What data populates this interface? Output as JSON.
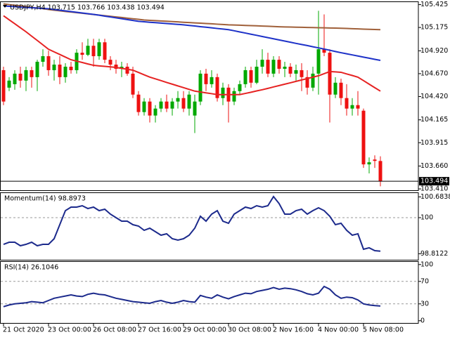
{
  "chart_data": [
    {
      "type": "candlestick",
      "title": "USDJPY,H4  103.715 103.766 103.438 103.494",
      "categories": [
        "21 Oct 2020",
        null,
        null,
        null,
        null,
        null,
        null,
        null,
        "23 Oct 00:00",
        null,
        null,
        null,
        null,
        null,
        null,
        null,
        "26 Oct 08:00",
        null,
        null,
        null,
        null,
        null,
        null,
        null,
        "27 Oct 16:00",
        null,
        null,
        null,
        null,
        null,
        null,
        null,
        "29 Oct 00:00",
        null,
        null,
        null,
        null,
        null,
        null,
        null,
        "30 Oct 08:00",
        null,
        null,
        null,
        null,
        null,
        null,
        null,
        "2 Nov 16:00",
        null,
        null,
        null,
        null,
        null,
        null,
        null,
        "4 Nov 00:00",
        null,
        null,
        null,
        null,
        null,
        null,
        null,
        "5 Nov 08:00",
        null,
        null,
        null
      ],
      "open": [
        104.708,
        104.517,
        104.555,
        104.67,
        104.594,
        104.708,
        104.632,
        104.8,
        104.861,
        104.708,
        104.769,
        104.632,
        104.746,
        104.708,
        104.899,
        104.876,
        104.975,
        104.861,
        105.013,
        104.822,
        104.769,
        104.723,
        104.746,
        104.67,
        104.441,
        104.25,
        104.365,
        104.212,
        104.288,
        104.365,
        104.288,
        104.365,
        104.403,
        104.288,
        104.212,
        104.365,
        104.67,
        104.555,
        104.632,
        104.403,
        104.517,
        104.365,
        104.479,
        104.555,
        104.708,
        104.571,
        104.746,
        104.822,
        104.67,
        104.822,
        104.723,
        104.746,
        104.67,
        104.708,
        104.632,
        104.517,
        104.67,
        104.937,
        104.899,
        104.441,
        104.571,
        104.403,
        104.288,
        104.326,
        104.265,
        103.678,
        103.731,
        103.715
      ],
      "high": [
        104.746,
        104.632,
        104.708,
        104.746,
        104.746,
        104.746,
        104.822,
        104.937,
        104.922,
        104.822,
        104.861,
        104.784,
        104.8,
        104.937,
        105.013,
        105.051,
        105.051,
        105.051,
        105.051,
        104.861,
        104.822,
        104.8,
        104.784,
        104.746,
        104.479,
        104.403,
        104.403,
        104.326,
        104.403,
        104.441,
        104.403,
        104.479,
        104.479,
        104.479,
        104.441,
        104.708,
        104.723,
        104.708,
        104.67,
        104.571,
        104.555,
        104.517,
        104.594,
        104.746,
        104.746,
        104.822,
        104.937,
        104.899,
        104.861,
        104.861,
        104.8,
        104.784,
        104.769,
        104.784,
        104.708,
        104.746,
        105.357,
        105.318,
        104.937,
        104.632,
        104.616,
        104.555,
        104.403,
        104.479,
        104.288,
        103.754,
        103.777,
        103.766
      ],
      "low": [
        104.326,
        104.479,
        104.494,
        104.517,
        104.479,
        104.517,
        104.479,
        104.746,
        104.647,
        104.594,
        104.555,
        104.571,
        104.67,
        104.67,
        104.822,
        104.861,
        104.746,
        104.822,
        104.784,
        104.708,
        104.67,
        104.632,
        104.647,
        104.403,
        104.212,
        104.212,
        104.136,
        104.136,
        104.25,
        104.25,
        104.212,
        104.288,
        104.25,
        104.212,
        104.021,
        104.326,
        104.479,
        104.517,
        104.365,
        104.326,
        104.136,
        104.326,
        104.441,
        104.517,
        104.517,
        104.555,
        104.67,
        104.632,
        104.632,
        104.67,
        104.632,
        104.632,
        104.594,
        104.479,
        104.441,
        104.479,
        104.441,
        104.861,
        104.136,
        104.403,
        104.326,
        104.212,
        104.212,
        104.212,
        103.64,
        103.579,
        103.64,
        103.438
      ],
      "close": [
        104.365,
        104.594,
        104.67,
        104.594,
        104.708,
        104.632,
        104.8,
        104.861,
        104.708,
        104.769,
        104.632,
        104.746,
        104.708,
        104.899,
        104.876,
        104.975,
        104.861,
        105.013,
        104.822,
        104.769,
        104.723,
        104.746,
        104.67,
        104.441,
        104.25,
        104.365,
        104.212,
        104.288,
        104.365,
        104.288,
        104.365,
        104.403,
        104.288,
        104.441,
        104.365,
        104.67,
        104.555,
        104.632,
        104.403,
        104.517,
        104.365,
        104.479,
        104.555,
        104.708,
        104.571,
        104.746,
        104.822,
        104.67,
        104.822,
        104.723,
        104.746,
        104.67,
        104.708,
        104.632,
        104.517,
        104.67,
        104.937,
        104.899,
        104.441,
        104.571,
        104.403,
        104.288,
        104.326,
        104.288,
        103.678,
        103.701,
        103.716,
        103.494
      ],
      "bull_color": "#00a800",
      "bear_color": "#ee1111",
      "series": [
        {
          "color": "#a0603a",
          "values": [
            105.433,
            105.425,
            105.418,
            105.41,
            105.403,
            105.395,
            105.387,
            105.38,
            105.372,
            105.364,
            105.357,
            105.35,
            105.344,
            105.337,
            105.33,
            105.324,
            105.317,
            105.31,
            105.304,
            105.297,
            105.29,
            105.284,
            105.277,
            105.27,
            105.264,
            105.257,
            105.253,
            105.25,
            105.246,
            105.243,
            105.239,
            105.236,
            105.232,
            105.229,
            105.225,
            105.222,
            105.218,
            105.215,
            105.211,
            105.208,
            105.204,
            105.202,
            105.2,
            105.197,
            105.195,
            105.193,
            105.19,
            105.188,
            105.186,
            105.183,
            105.181,
            105.18,
            105.178,
            105.177,
            105.175,
            105.174,
            105.172,
            105.171,
            105.169,
            105.168,
            105.166,
            105.164,
            105.162,
            105.16,
            105.157,
            105.155,
            105.153,
            105.151
          ]
        },
        {
          "color": "#1e32c8",
          "values": [
            105.41,
            105.406,
            105.402,
            105.398,
            105.394,
            105.391,
            105.387,
            105.383,
            105.379,
            105.371,
            105.364,
            105.356,
            105.349,
            105.341,
            105.333,
            105.326,
            105.318,
            105.309,
            105.299,
            105.29,
            105.28,
            105.271,
            105.261,
            105.252,
            105.242,
            105.237,
            105.232,
            105.228,
            105.223,
            105.218,
            105.213,
            105.209,
            105.204,
            105.197,
            105.191,
            105.184,
            105.178,
            105.171,
            105.164,
            105.158,
            105.151,
            105.139,
            105.126,
            105.114,
            105.101,
            105.089,
            105.076,
            105.064,
            105.051,
            105.039,
            105.026,
            105.014,
            105.001,
            104.989,
            104.977,
            104.964,
            104.952,
            104.939,
            104.926,
            104.912,
            104.899,
            104.887,
            104.875,
            104.863,
            104.851,
            104.839,
            104.827,
            104.815
          ]
        },
        {
          "color": "#e62222",
          "values": [
            105.303,
            105.259,
            105.216,
            105.172,
            105.128,
            105.08,
            105.033,
            104.985,
            104.937,
            104.908,
            104.88,
            104.851,
            104.822,
            104.807,
            104.792,
            104.776,
            104.761,
            104.755,
            104.75,
            104.744,
            104.738,
            104.728,
            104.718,
            104.708,
            104.683,
            104.657,
            104.632,
            104.613,
            104.594,
            104.574,
            104.555,
            104.536,
            104.517,
            104.498,
            104.479,
            104.47,
            104.46,
            104.451,
            104.441,
            104.441,
            104.441,
            104.441,
            104.441,
            104.454,
            104.467,
            104.481,
            104.494,
            104.509,
            104.525,
            104.54,
            104.555,
            104.57,
            104.586,
            104.601,
            104.616,
            104.632,
            104.647,
            104.67,
            104.693,
            104.689,
            104.685,
            104.667,
            104.65,
            104.632,
            104.594,
            104.555,
            104.517,
            104.479
          ]
        }
      ],
      "current_price": 103.494,
      "ylim": [
        103.395,
        105.46
      ],
      "yticks": [
        105.425,
        105.175,
        {
          "value": 104.92,
          "label": "104.920"
        },
        {
          "value": 104.67,
          "label": "104.670"
        },
        {
          "value": 104.42,
          "label": "104.420"
        },
        104.165,
        103.915,
        {
          "value": 103.66,
          "label": "103.660"
        },
        {
          "value": 103.41,
          "label": "103.410"
        }
      ]
    },
    {
      "type": "line",
      "title": "Momentum(14) 98.8973",
      "series": [
        {
          "color": "#1c2a8c",
          "values": [
            99.122,
            99.191,
            99.191,
            99.076,
            99.122,
            99.191,
            99.076,
            99.122,
            99.122,
            99.307,
            99.769,
            100.231,
            100.347,
            100.347,
            100.393,
            100.3,
            100.347,
            100.231,
            100.277,
            100.116,
            100.0,
            99.884,
            99.884,
            99.769,
            99.723,
            99.584,
            99.653,
            99.538,
            99.422,
            99.469,
            99.307,
            99.261,
            99.307,
            99.422,
            99.653,
            100.046,
            99.884,
            100.116,
            100.231,
            99.884,
            99.815,
            100.116,
            100.231,
            100.347,
            100.3,
            100.393,
            100.347,
            100.393,
            100.693,
            100.462,
            100.116,
            100.116,
            100.231,
            100.277,
            100.116,
            100.231,
            100.323,
            100.231,
            100.046,
            99.769,
            99.815,
            99.584,
            99.422,
            99.469,
            98.96,
            99.008,
            98.914,
            98.8973
          ]
        }
      ],
      "levels": [
        100
      ],
      "ylim": [
        98.614,
        100.832
      ],
      "yticks": [
        100.6838,
        100,
        98.8122
      ]
    },
    {
      "type": "line",
      "title": "RSI(14) 26.1046",
      "series": [
        {
          "color": "#1c2a8c",
          "values": [
            25,
            28,
            30,
            31,
            32,
            34,
            33,
            32,
            36,
            40,
            42,
            44,
            46,
            44,
            43,
            47,
            49,
            47,
            46,
            43,
            40,
            38,
            36,
            34,
            33,
            32,
            31,
            34,
            36,
            33,
            31,
            33,
            36,
            34,
            33,
            45,
            42,
            40,
            46,
            42,
            39,
            43,
            46,
            49,
            48,
            52,
            54,
            56,
            59,
            56,
            58,
            57,
            55,
            52,
            48,
            46,
            49,
            61,
            56,
            46,
            40,
            42,
            41,
            37,
            30,
            28,
            27,
            26.1046
          ]
        }
      ],
      "levels": [
        70,
        30
      ],
      "ylim": [
        -4,
        106
      ],
      "yticks": [
        100,
        70,
        30,
        0
      ]
    }
  ]
}
